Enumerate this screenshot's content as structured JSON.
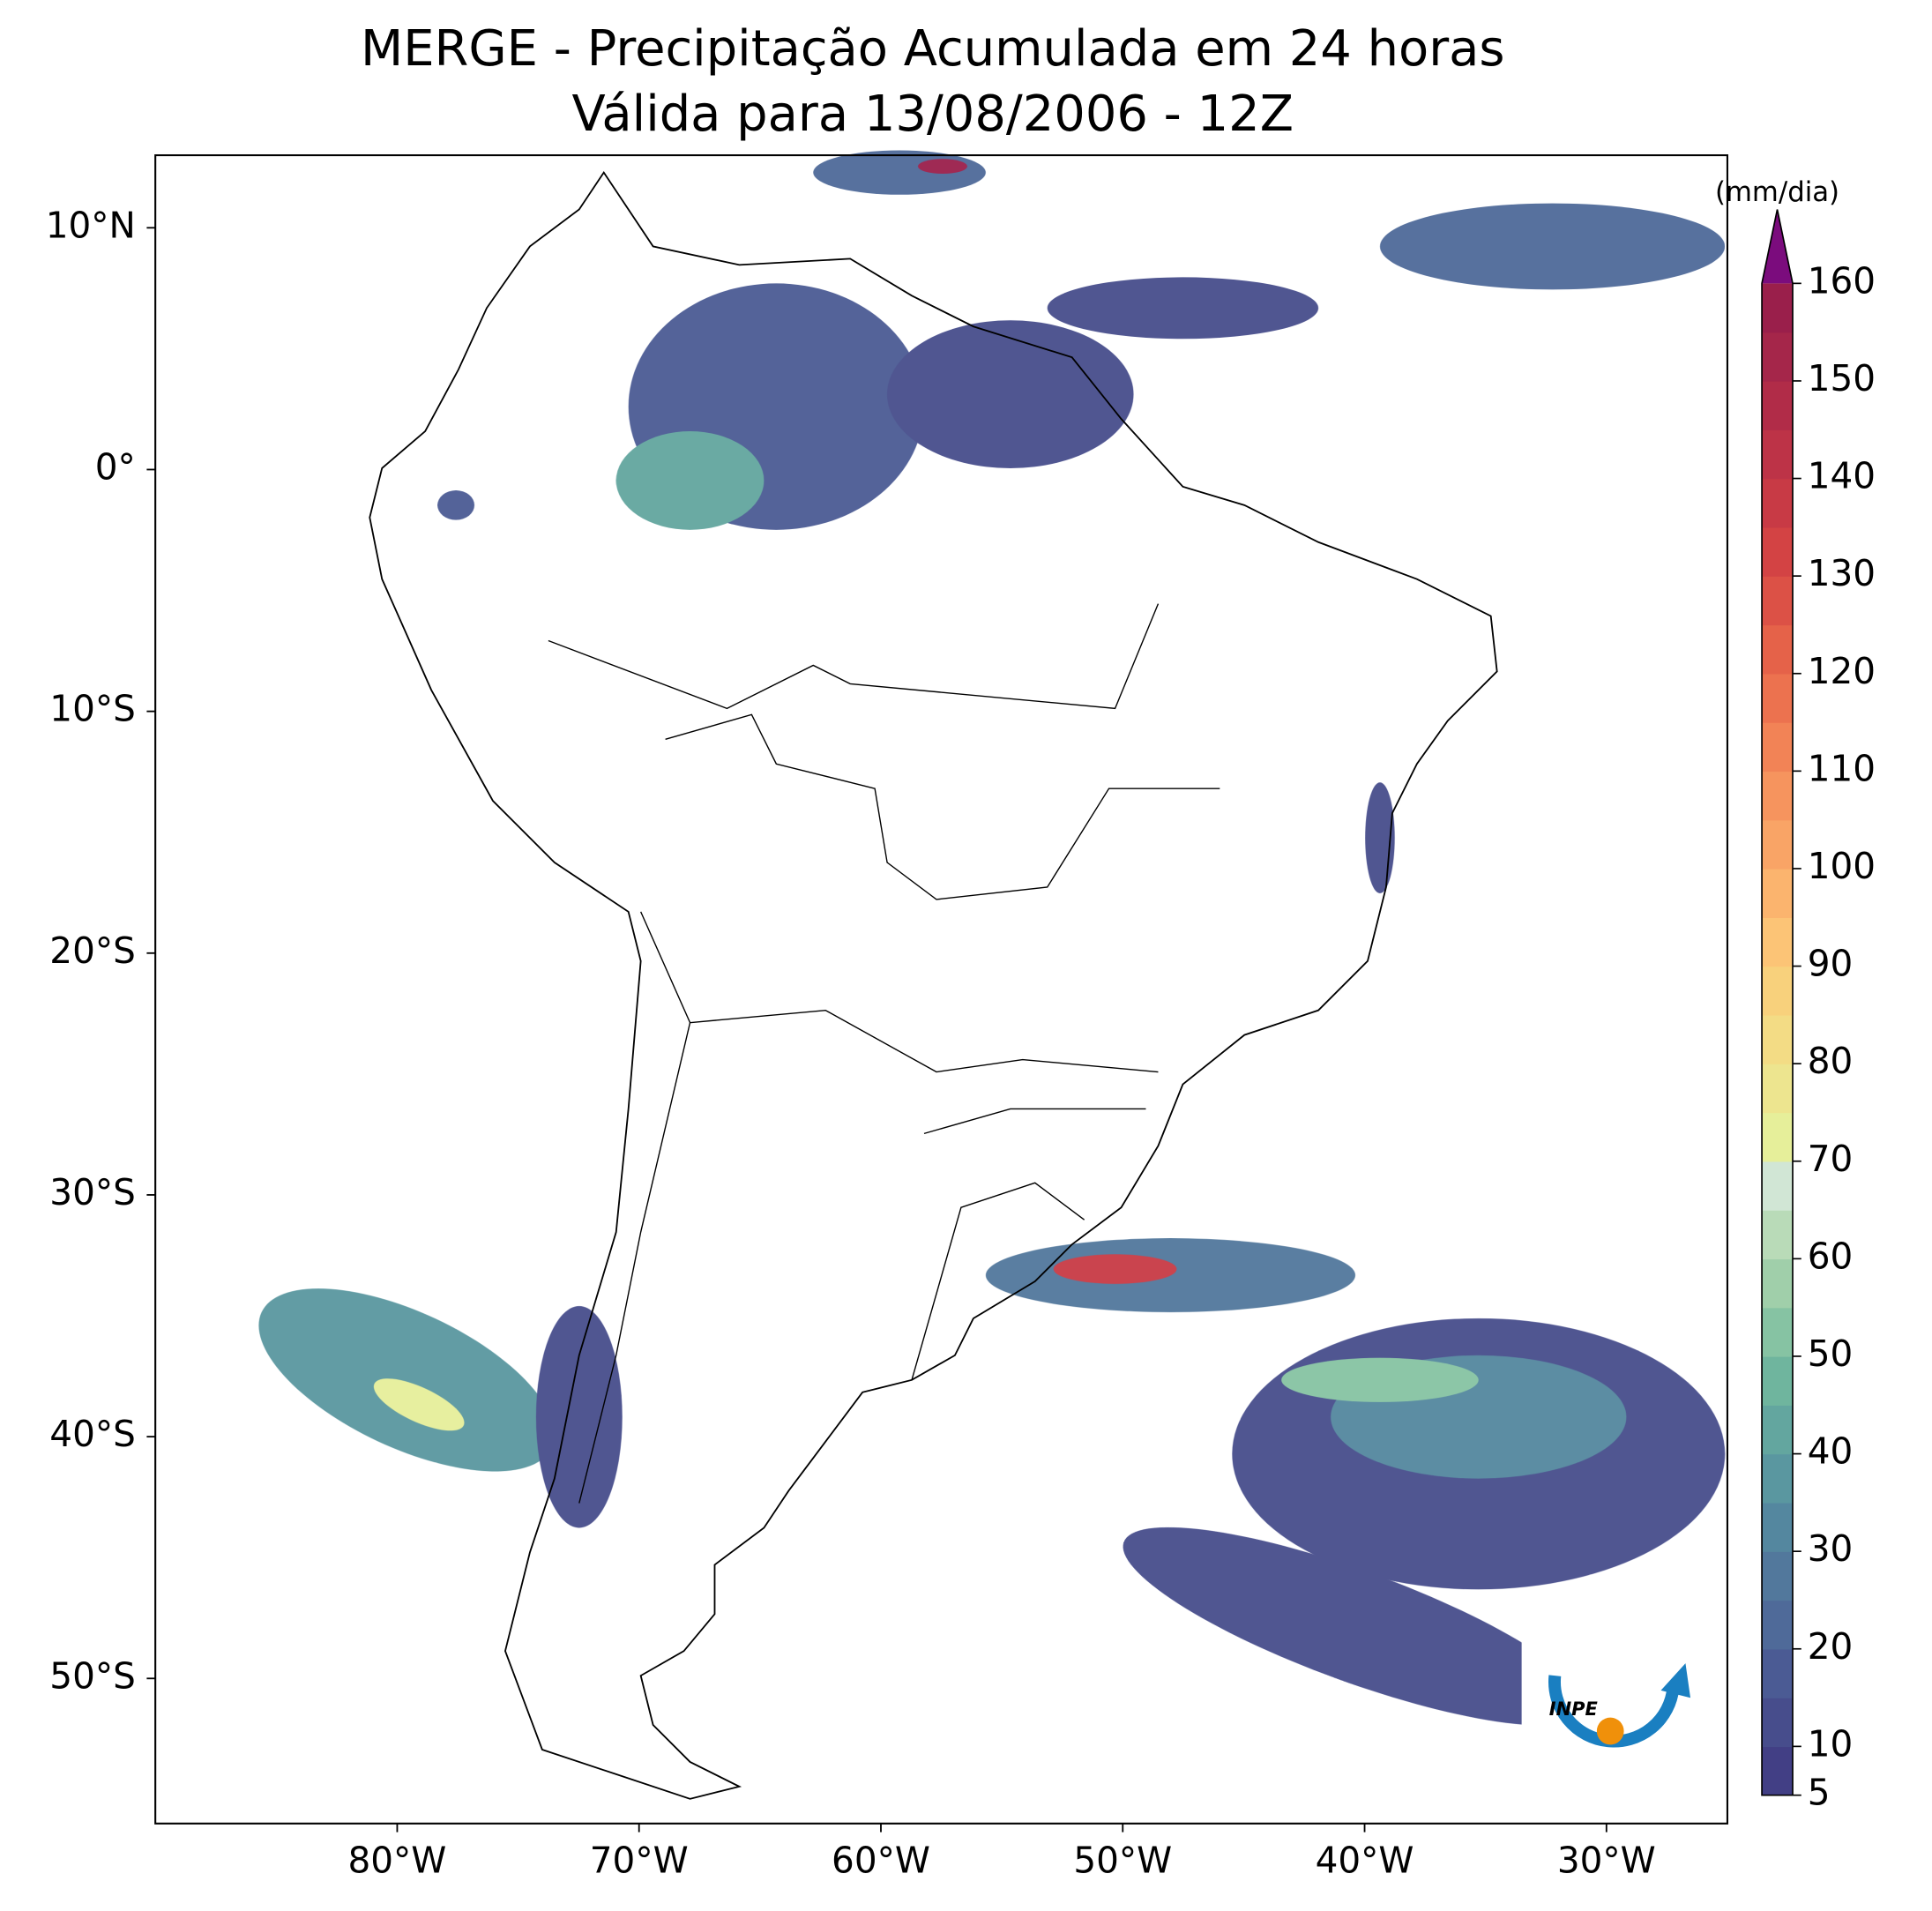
{
  "chart_data": {
    "type": "map",
    "title": "MERGE - Precipitação Acumulada em 24 horas",
    "subtitle": "Válida para 13/08/2006 - 12Z",
    "xlim": [
      -90,
      -25
    ],
    "ylim": [
      -56,
      13
    ],
    "xticks": [
      {
        "value": -80,
        "label": "80°W"
      },
      {
        "value": -70,
        "label": "70°W"
      },
      {
        "value": -60,
        "label": "60°W"
      },
      {
        "value": -50,
        "label": "50°W"
      },
      {
        "value": -40,
        "label": "40°W"
      },
      {
        "value": -30,
        "label": "30°W"
      }
    ],
    "yticks": [
      {
        "value": 10,
        "label": "10°N"
      },
      {
        "value": 0,
        "label": "0°"
      },
      {
        "value": -10,
        "label": "10°S"
      },
      {
        "value": -20,
        "label": "20°S"
      },
      {
        "value": -30,
        "label": "30°S"
      },
      {
        "value": -40,
        "label": "40°S"
      },
      {
        "value": -50,
        "label": "50°S"
      }
    ],
    "colorbar": {
      "label": "(mm/dia)",
      "lim": [
        5,
        160
      ],
      "ticks": [
        5,
        10,
        20,
        30,
        40,
        50,
        60,
        70,
        80,
        90,
        100,
        110,
        120,
        130,
        140,
        150,
        160
      ],
      "colors": [
        "#423f85",
        "#474d8c",
        "#4b5b94",
        "#4f6a99",
        "#52789c",
        "#54879f",
        "#5a97a0",
        "#63a69f",
        "#6fb59e",
        "#86c3a3",
        "#a0cfaa",
        "#b9dbb8",
        "#d1e6d5",
        "#e6ef9a",
        "#ede58f",
        "#f3dc85",
        "#f8d17c",
        "#fcc476",
        "#fbb46e",
        "#f9a466",
        "#f6945e",
        "#f28356",
        "#ec724f",
        "#e56249",
        "#dc5146",
        "#d34344",
        "#c83a45",
        "#bd3347",
        "#b12c48",
        "#a5264a",
        "#9a1f4b"
      ],
      "extend_color": "#7b0c7d"
    },
    "logo_text": "INPE"
  }
}
